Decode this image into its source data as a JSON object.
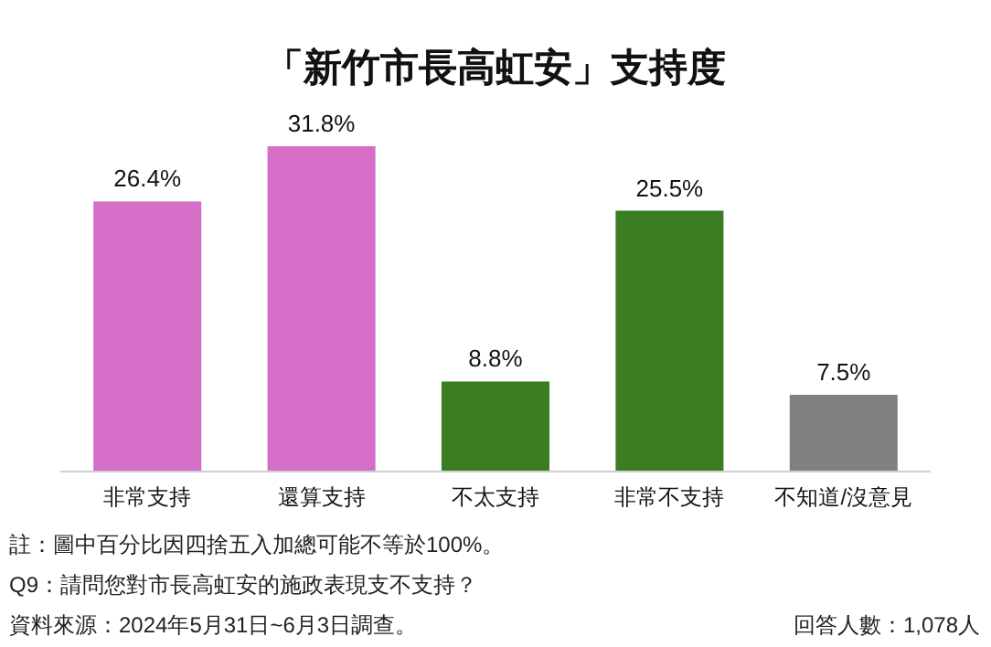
{
  "chart_data": {
    "type": "bar",
    "title": "「新竹市長高虹安」支持度",
    "categories": [
      "非常支持",
      "還算支持",
      "不太支持",
      "非常不支持",
      "不知道/沒意見"
    ],
    "values": [
      26.4,
      31.8,
      8.8,
      25.5,
      7.5
    ],
    "colors": [
      "#d66ec8",
      "#d66ec8",
      "#3b7d23",
      "#3b7d23",
      "#808080"
    ],
    "value_labels": [
      "26.4%",
      "31.8%",
      "8.8%",
      "25.5%",
      "7.5%"
    ],
    "annotations": [
      "註：圖中百分比因四捨五入加總可能不等於100%。",
      "Q9：請問您對市長高虹安的施政表現支不支持？",
      "資料來源：2024年5月31日~6月3日調查。",
      "回答人數：1,078人"
    ]
  }
}
